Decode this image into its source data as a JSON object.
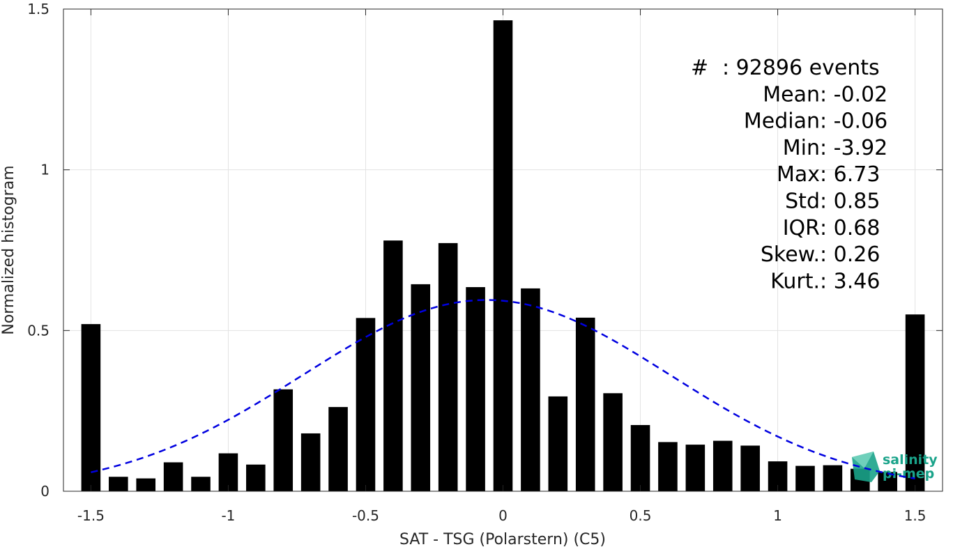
{
  "chart_data": {
    "type": "bar",
    "xlabel": "SAT - TSG (Polarstern) (C5)",
    "ylabel": "Normalized histogram",
    "xlim": [
      -1.6,
      1.6
    ],
    "ylim": [
      0,
      1.5
    ],
    "xticks": [
      -1.5,
      -1,
      -0.5,
      0,
      0.5,
      1,
      1.5
    ],
    "xtick_labels": [
      "-1.5",
      "-1",
      "-0.5",
      "0",
      "0.5",
      "1",
      "1.5"
    ],
    "yticks": [
      0,
      0.5,
      1,
      1.5
    ],
    "ytick_labels": [
      "0",
      "0.5",
      "1",
      "1.5"
    ],
    "grid": true,
    "bar_width": 0.07,
    "x": [
      -1.5,
      -1.4,
      -1.3,
      -1.2,
      -1.1,
      -1.0,
      -0.9,
      -0.8,
      -0.7,
      -0.6,
      -0.5,
      -0.4,
      -0.3,
      -0.2,
      -0.1,
      0.0,
      0.1,
      0.2,
      0.3,
      0.4,
      0.5,
      0.6,
      0.7,
      0.8,
      0.9,
      1.0,
      1.1,
      1.2,
      1.3,
      1.4,
      1.5
    ],
    "values": [
      0.52,
      0.045,
      0.04,
      0.09,
      0.045,
      0.118,
      0.083,
      0.317,
      0.18,
      0.262,
      0.539,
      0.78,
      0.644,
      0.772,
      0.635,
      1.465,
      0.631,
      0.295,
      0.54,
      0.305,
      0.206,
      0.153,
      0.145,
      0.157,
      0.142,
      0.093,
      0.079,
      0.081,
      0.07,
      0.06,
      0.55
    ],
    "bar_color": "#000000",
    "fit_curve": {
      "style": "dashed",
      "color": "#0000e0",
      "x_range": [
        -1.5,
        1.5
      ],
      "mean": -0.06,
      "std": 0.67,
      "peak": 0.595
    },
    "stats": [
      {
        "label": "#",
        "sep": " : ",
        "value": "92896 events"
      },
      {
        "label": "Mean",
        "sep": " : ",
        "value": "-0.02"
      },
      {
        "label": "Median",
        "sep": " : ",
        "value": "-0.06"
      },
      {
        "label": "Min",
        "sep": " : ",
        "value": "-3.92"
      },
      {
        "label": "Max",
        "sep": " : ",
        "value": "6.73"
      },
      {
        "label": "Std",
        "sep": " : ",
        "value": "0.85"
      },
      {
        "label": "IQR",
        "sep": " : ",
        "value": "0.68"
      },
      {
        "label": "Skew.",
        "sep": " : ",
        "value": "0.26"
      },
      {
        "label": "Kurt.",
        "sep": " : ",
        "value": "3.46"
      }
    ],
    "logo": {
      "line1": "salinity",
      "line2": "pi-mep",
      "color": "#1aa38a"
    }
  }
}
